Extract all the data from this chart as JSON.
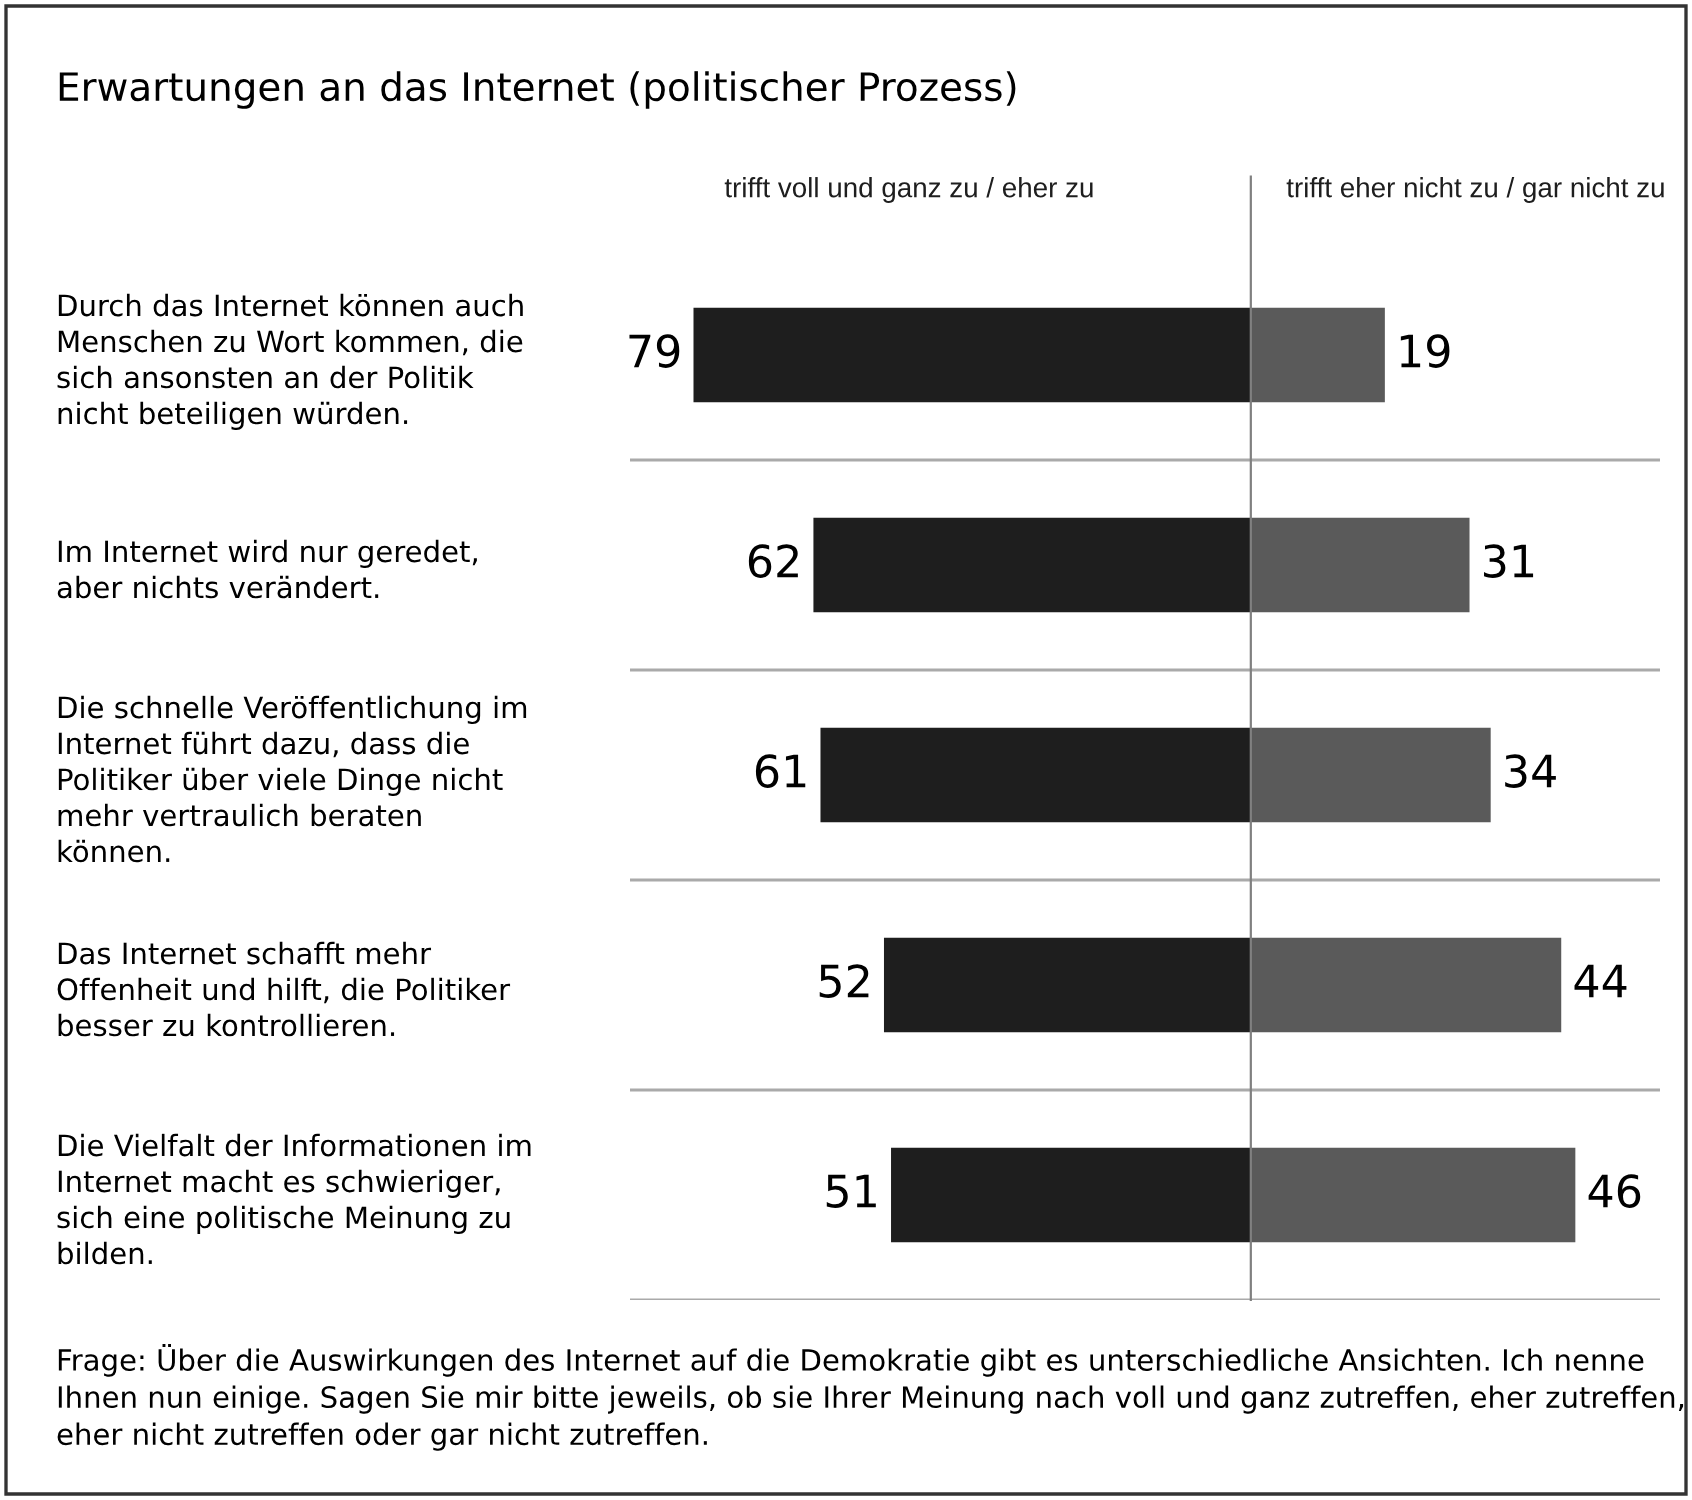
{
  "chart_data": [
    {
      "type": "bar",
      "orientation": "horizontal",
      "title": "Erwartungen an das Internet (politischer Prozess)",
      "subtitle": "trifft voll und ganz zu / eher zu",
      "categories": [
        "Durch das Internet können auch\nMenschen zu Wort kommen, die\nsich ansonsten an der Politik\nnicht beteiligen würden.",
        "Im Internet wird nur geredet,\naber nichts verändert.",
        "Die schnelle Veröffentlichung im\nInternet führt dazu, dass die\nPolitiker über viele Dinge nicht\nmehr vertraulich beraten\nkönnen.",
        "Das Internet schafft mehr\nOffenheit und hilft, die Politiker\nbesser zu kontrollieren.",
        "Die Vielfalt der Informationen im\nInternet macht es schwieriger,\nsich eine politische Meinung zu\nbilden."
      ],
      "values": [
        79,
        62,
        61,
        52,
        51
      ],
      "color": "#1e1e1e",
      "xlim": [
        88,
        0
      ],
      "data_labels": true,
      "grid": "y",
      "tick_labels": "y",
      "annotations": [
        "Frage: Über die Auswirkungen des Internet auf die Demokratie gibt es unterschiedliche Ansichten. Ich nenne Ihnen nun einige. Sagen Sie mir bitte jeweils, ob sie Ihrer Meinung nach voll und ganz zutreffen, eher zutreffen, eher nicht zutreffen oder gar nicht zutreffen."
      ]
    },
    {
      "type": "bar",
      "orientation": "horizontal",
      "subtitle": "trifft eher nicht zu / gar nicht zu",
      "categories": [
        null,
        null,
        null,
        null,
        null
      ],
      "values": [
        19,
        31,
        34,
        44,
        46
      ],
      "color": "#5a5a5a",
      "xlim": [
        0,
        58
      ],
      "data_labels": true,
      "grid": "y",
      "tick_labels": false
    }
  ]
}
